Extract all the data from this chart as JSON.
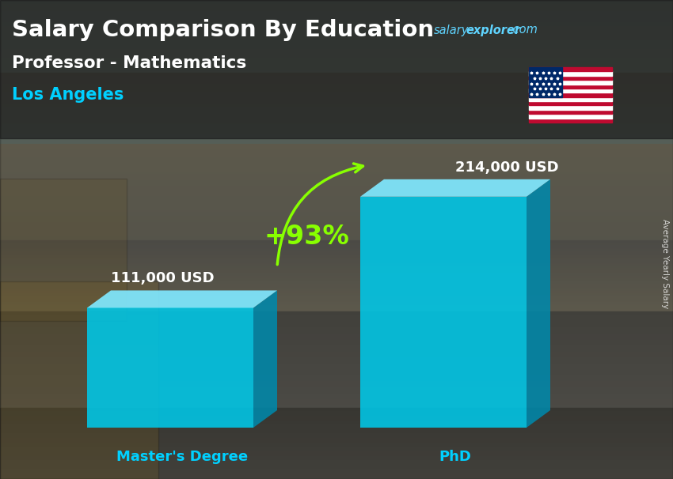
{
  "title_main": "Salary Comparison By Education",
  "subtitle": "Professor - Mathematics",
  "location": "Los Angeles",
  "categories": [
    "Master's Degree",
    "PhD"
  ],
  "values": [
    111000,
    214000
  ],
  "value_labels": [
    "111,000 USD",
    "214,000 USD"
  ],
  "pct_change": "+93%",
  "bar_front_color": "#00c8e8",
  "bar_side_color": "#0088aa",
  "bar_top_color": "#80e8ff",
  "pct_color": "#88ff00",
  "arrow_color": "#88ff00",
  "title_color": "#ffffff",
  "subtitle_color": "#ffffff",
  "location_color": "#00d0ff",
  "value_label_color": "#ffffff",
  "category_label_color": "#00d0ff",
  "salary_text_color": "#00aaff",
  "explorer_text_color": "#00aaff",
  "com_text_color": "#00aaff",
  "ylabel_text": "Average Yearly Salary",
  "bg_top_color": "#7a8a8a",
  "bg_bottom_color": "#5a6060",
  "figure_width": 8.5,
  "figure_height": 6.06,
  "ylim_max": 260000
}
